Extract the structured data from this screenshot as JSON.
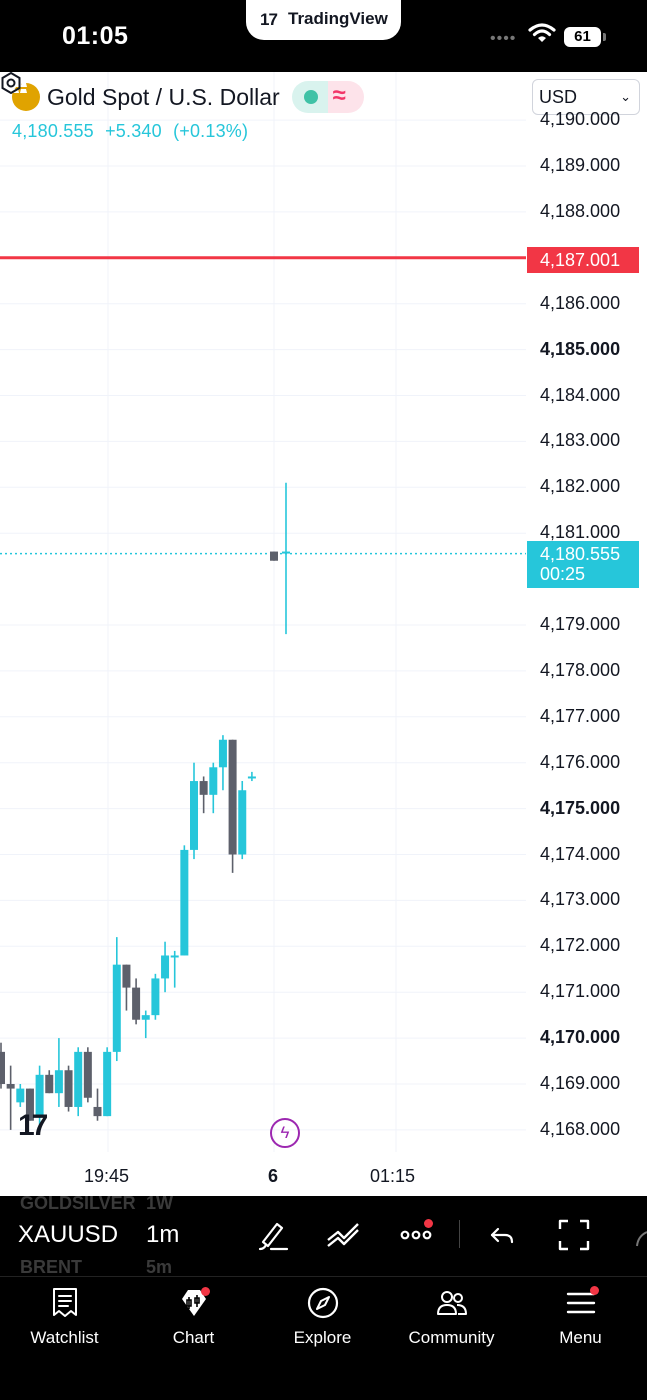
{
  "status_bar": {
    "time": "01:05",
    "app_pill": "TradingView",
    "battery": "61"
  },
  "header": {
    "symbol_name": "Gold Spot / U.S. Dollar",
    "price": "4,180.555",
    "change": "+5.340",
    "change_pct": "(+0.13%)",
    "currency": "USD"
  },
  "price_axis": {
    "labels": [
      {
        "text": "4,190.000",
        "bold": false
      },
      {
        "text": "4,189.000",
        "bold": false
      },
      {
        "text": "4,188.000",
        "bold": false
      },
      {
        "text": "4,186.000",
        "bold": false
      },
      {
        "text": "4,185.000",
        "bold": true
      },
      {
        "text": "4,184.000",
        "bold": false
      },
      {
        "text": "4,183.000",
        "bold": false
      },
      {
        "text": "4,182.000",
        "bold": false
      },
      {
        "text": "4,181.000",
        "bold": false
      },
      {
        "text": "4,179.000",
        "bold": false
      },
      {
        "text": "4,178.000",
        "bold": false
      },
      {
        "text": "4,177.000",
        "bold": false
      },
      {
        "text": "4,176.000",
        "bold": false
      },
      {
        "text": "4,175.000",
        "bold": true
      },
      {
        "text": "4,174.000",
        "bold": false
      },
      {
        "text": "4,173.000",
        "bold": false
      },
      {
        "text": "4,172.000",
        "bold": false
      },
      {
        "text": "4,171.000",
        "bold": false
      },
      {
        "text": "4,170.000",
        "bold": true
      },
      {
        "text": "4,169.000",
        "bold": false
      },
      {
        "text": "4,168.000",
        "bold": false
      }
    ],
    "alert_line": "4,187.001",
    "current_price": "4,180.555",
    "countdown": "00:25"
  },
  "time_axis": {
    "labels": [
      {
        "text": "19:45",
        "bold": false
      },
      {
        "text": "6",
        "bold": true
      },
      {
        "text": "01:15",
        "bold": false
      }
    ]
  },
  "chart_data": {
    "type": "candlestick",
    "up_color": "#26c6da",
    "down_color": "#5d606b",
    "alert_color": "#f23645",
    "alert_price": 4187.001,
    "current_price": 4180.555,
    "candles": [
      {
        "o": 4169.7,
        "h": 4169.9,
        "l": 4168.9,
        "c": 4169.0
      },
      {
        "o": 4169.0,
        "h": 4169.4,
        "l": 4168.0,
        "c": 4168.9
      },
      {
        "o": 4168.6,
        "h": 4169.0,
        "l": 4168.5,
        "c": 4168.9
      },
      {
        "o": 4168.9,
        "h": 4168.9,
        "l": 4168.2,
        "c": 4168.2
      },
      {
        "o": 4168.3,
        "h": 4169.4,
        "l": 4168.1,
        "c": 4169.2
      },
      {
        "o": 4169.2,
        "h": 4169.3,
        "l": 4168.8,
        "c": 4168.8
      },
      {
        "o": 4168.8,
        "h": 4170.0,
        "l": 4168.5,
        "c": 4169.3
      },
      {
        "o": 4169.3,
        "h": 4169.4,
        "l": 4168.4,
        "c": 4168.5
      },
      {
        "o": 4168.5,
        "h": 4169.8,
        "l": 4168.3,
        "c": 4169.7
      },
      {
        "o": 4169.7,
        "h": 4169.8,
        "l": 4168.6,
        "c": 4168.7
      },
      {
        "o": 4168.5,
        "h": 4168.9,
        "l": 4168.2,
        "c": 4168.3
      },
      {
        "o": 4168.3,
        "h": 4169.8,
        "l": 4168.3,
        "c": 4169.7
      },
      {
        "o": 4169.7,
        "h": 4172.2,
        "l": 4169.5,
        "c": 4171.6
      },
      {
        "o": 4171.6,
        "h": 4171.6,
        "l": 4170.6,
        "c": 4171.1
      },
      {
        "o": 4171.1,
        "h": 4171.3,
        "l": 4170.3,
        "c": 4170.4
      },
      {
        "o": 4170.4,
        "h": 4170.6,
        "l": 4170.0,
        "c": 4170.5
      },
      {
        "o": 4170.5,
        "h": 4171.4,
        "l": 4170.4,
        "c": 4171.3
      },
      {
        "o": 4171.3,
        "h": 4172.1,
        "l": 4171.0,
        "c": 4171.8
      },
      {
        "o": 4171.8,
        "h": 4171.9,
        "l": 4171.1,
        "c": 4171.8
      },
      {
        "o": 4171.8,
        "h": 4174.2,
        "l": 4171.8,
        "c": 4174.1
      },
      {
        "o": 4174.1,
        "h": 4176.0,
        "l": 4173.9,
        "c": 4175.6
      },
      {
        "o": 4175.6,
        "h": 4175.7,
        "l": 4174.9,
        "c": 4175.3
      },
      {
        "o": 4175.3,
        "h": 4176.0,
        "l": 4174.9,
        "c": 4175.9
      },
      {
        "o": 4175.9,
        "h": 4176.6,
        "l": 4175.4,
        "c": 4176.5
      },
      {
        "o": 4176.5,
        "h": 4176.5,
        "l": 4173.6,
        "c": 4174.0
      },
      {
        "o": 4174.0,
        "h": 4175.6,
        "l": 4173.9,
        "c": 4175.4
      },
      {
        "o": 4175.7,
        "h": 4175.8,
        "l": 4175.6,
        "c": 4175.7
      },
      {
        "o": 4180.6,
        "h": 4180.6,
        "l": 4180.4,
        "c": 4180.4
      },
      {
        "o": 4180.6,
        "h": 4182.1,
        "l": 4178.8,
        "c": 4180.6
      }
    ]
  },
  "toolbar": {
    "ghost_prev_symbol": "GOLDSILVER",
    "ghost_prev_interval": "1W",
    "symbol": "XAUUSD",
    "interval": "1m",
    "ghost_next_symbol": "BRENT",
    "ghost_next_interval": "5m",
    "icons": [
      "brush-icon",
      "trendline-icon",
      "more-icon",
      "undo-icon",
      "fullscreen-icon"
    ]
  },
  "bottom_nav": {
    "items": [
      {
        "label": "Watchlist",
        "icon": "watchlist-icon"
      },
      {
        "label": "Chart",
        "icon": "chart-icon"
      },
      {
        "label": "Explore",
        "icon": "compass-icon"
      },
      {
        "label": "Community",
        "icon": "community-icon"
      },
      {
        "label": "Menu",
        "icon": "menu-icon"
      }
    ]
  }
}
